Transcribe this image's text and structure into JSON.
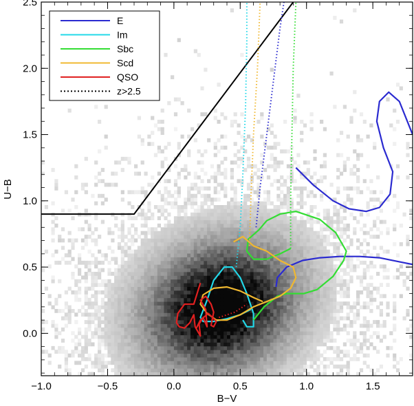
{
  "chart_data": {
    "type": "scatter",
    "title": "",
    "xlabel": "B−V",
    "ylabel": "U−B",
    "xlim": [
      -1.0,
      1.8
    ],
    "ylim": [
      -0.32,
      2.5
    ],
    "xticks": [
      -1.0,
      -0.5,
      0.0,
      0.5,
      1.0,
      1.5
    ],
    "xtick_labels": [
      "−1.0",
      "−0.5",
      "0.0",
      "0.5",
      "1.0",
      "1.5"
    ],
    "yticks": [
      0.0,
      0.5,
      1.0,
      1.5,
      2.0,
      2.5
    ],
    "ytick_labels": [
      "0.0",
      "0.5",
      "1.0",
      "1.5",
      "2.0",
      "2.5"
    ],
    "grid": false,
    "legend_position": "top-left",
    "background_density": {
      "description_style": "grayscale 2D histogram of galaxy colours",
      "peak_center": [
        0.35,
        0.2
      ],
      "spread": [
        0.35,
        0.28
      ],
      "tilt": 0.45
    },
    "selection_boundary": {
      "color": "#000000",
      "points": [
        [
          -1.0,
          0.9
        ],
        [
          -0.3,
          0.9
        ],
        [
          0.9,
          2.5
        ]
      ]
    },
    "series": [
      {
        "name": "E",
        "color": "#2a2ad0",
        "points": [
          [
            0.77,
            0.35
          ],
          [
            0.78,
            0.42
          ],
          [
            0.85,
            0.5
          ],
          [
            0.97,
            0.55
          ],
          [
            1.1,
            0.57
          ],
          [
            1.25,
            0.58
          ],
          [
            1.4,
            0.58
          ],
          [
            1.55,
            0.57
          ],
          [
            1.7,
            0.54
          ],
          [
            1.8,
            0.52
          ]
        ],
        "dotted": [
          [
            0.62,
            0.8
          ],
          [
            0.65,
            1.1
          ],
          [
            0.7,
            1.5
          ],
          [
            0.75,
            1.9
          ],
          [
            0.8,
            2.3
          ],
          [
            0.83,
            2.5
          ]
        ],
        "extra": [
          [
            0.92,
            1.25
          ],
          [
            1.05,
            1.12
          ],
          [
            1.2,
            1.0
          ],
          [
            1.32,
            0.94
          ],
          [
            1.45,
            0.92
          ],
          [
            1.55,
            0.95
          ],
          [
            1.63,
            1.05
          ],
          [
            1.65,
            1.22
          ],
          [
            1.58,
            1.4
          ],
          [
            1.53,
            1.6
          ],
          [
            1.55,
            1.75
          ],
          [
            1.62,
            1.82
          ],
          [
            1.7,
            1.75
          ],
          [
            1.76,
            1.6
          ],
          [
            1.8,
            1.5
          ]
        ]
      },
      {
        "name": "Im",
        "color": "#22d8e8",
        "points": [
          [
            0.52,
            0.1
          ],
          [
            0.55,
            0.05
          ],
          [
            0.6,
            0.05
          ],
          [
            0.6,
            0.15
          ],
          [
            0.55,
            0.3
          ],
          [
            0.5,
            0.42
          ],
          [
            0.44,
            0.5
          ],
          [
            0.38,
            0.5
          ],
          [
            0.3,
            0.4
          ],
          [
            0.25,
            0.25
          ],
          [
            0.2,
            0.12
          ],
          [
            0.22,
            0.09
          ],
          [
            0.3,
            0.09
          ],
          [
            0.4,
            0.11
          ],
          [
            0.5,
            0.14
          ],
          [
            0.58,
            0.18
          ]
        ],
        "dotted": [
          [
            0.47,
            0.5
          ],
          [
            0.5,
            0.8
          ],
          [
            0.52,
            1.2
          ],
          [
            0.54,
            1.7
          ],
          [
            0.55,
            2.2
          ],
          [
            0.55,
            2.5
          ]
        ]
      },
      {
        "name": "Sbc",
        "color": "#33dd33",
        "points": [
          [
            0.6,
            0.1
          ],
          [
            0.68,
            0.2
          ],
          [
            0.78,
            0.28
          ],
          [
            0.85,
            0.3
          ],
          [
            0.9,
            0.3
          ],
          [
            0.98,
            0.3
          ],
          [
            1.08,
            0.33
          ],
          [
            1.2,
            0.43
          ],
          [
            1.28,
            0.55
          ],
          [
            1.3,
            0.62
          ],
          [
            1.22,
            0.76
          ],
          [
            1.1,
            0.86
          ],
          [
            0.92,
            0.92
          ],
          [
            0.8,
            0.9
          ],
          [
            0.7,
            0.85
          ],
          [
            0.64,
            0.78
          ],
          [
            0.56,
            0.71
          ],
          [
            0.55,
            0.62
          ],
          [
            0.6,
            0.56
          ],
          [
            0.7,
            0.56
          ],
          [
            0.8,
            0.6
          ],
          [
            0.88,
            0.64
          ]
        ],
        "dotted": [
          [
            0.88,
            0.64
          ],
          [
            0.88,
            1.0
          ],
          [
            0.89,
            1.5
          ],
          [
            0.9,
            2.0
          ],
          [
            0.92,
            2.5
          ]
        ]
      },
      {
        "name": "Scd",
        "color": "#f0b830",
        "points": [
          [
            0.45,
            0.69
          ],
          [
            0.52,
            0.73
          ],
          [
            0.6,
            0.66
          ],
          [
            0.7,
            0.62
          ],
          [
            0.8,
            0.55
          ],
          [
            0.9,
            0.5
          ],
          [
            0.92,
            0.42
          ],
          [
            0.88,
            0.34
          ],
          [
            0.8,
            0.28
          ],
          [
            0.7,
            0.24
          ],
          [
            0.6,
            0.2
          ],
          [
            0.5,
            0.14
          ],
          [
            0.4,
            0.1
          ],
          [
            0.32,
            0.1
          ],
          [
            0.25,
            0.15
          ],
          [
            0.2,
            0.22
          ],
          [
            0.22,
            0.29
          ],
          [
            0.3,
            0.34
          ],
          [
            0.4,
            0.35
          ],
          [
            0.5,
            0.32
          ],
          [
            0.6,
            0.27
          ],
          [
            0.67,
            0.24
          ]
        ],
        "dotted": [
          [
            0.57,
            0.66
          ],
          [
            0.58,
            1.0
          ],
          [
            0.6,
            1.5
          ],
          [
            0.63,
            2.0
          ],
          [
            0.65,
            2.5
          ]
        ]
      },
      {
        "name": "QSO",
        "color": "#e02020",
        "points": [
          [
            0.2,
            0.38
          ],
          [
            0.15,
            0.22
          ],
          [
            0.08,
            0.22
          ],
          [
            0.03,
            0.15
          ],
          [
            0.02,
            0.08
          ],
          [
            0.04,
            0.05
          ],
          [
            0.08,
            0.04
          ],
          [
            0.12,
            0.08
          ],
          [
            0.15,
            0.14
          ],
          [
            0.16,
            0.05
          ],
          [
            0.2,
            -0.02
          ],
          [
            0.19,
            0.07
          ],
          [
            0.22,
            0.12
          ],
          [
            0.25,
            0.05
          ],
          [
            0.24,
            0.18
          ],
          [
            0.2,
            0.25
          ],
          [
            0.24,
            0.28
          ],
          [
            0.28,
            0.22
          ],
          [
            0.3,
            0.16
          ],
          [
            0.28,
            0.06
          ],
          [
            0.3,
            0.05
          ],
          [
            0.32,
            0.09
          ],
          [
            0.26,
            0.15
          ],
          [
            0.2,
            0.1
          ],
          [
            0.17,
            0.04
          ]
        ],
        "dotted": [
          [
            0.34,
            0.12
          ],
          [
            0.4,
            0.14
          ],
          [
            0.46,
            0.16
          ],
          [
            0.52,
            0.2
          ],
          [
            0.55,
            0.22
          ]
        ]
      },
      {
        "name": "z>2.5",
        "color": "#000000",
        "line_style": "dotted",
        "points": []
      }
    ]
  }
}
